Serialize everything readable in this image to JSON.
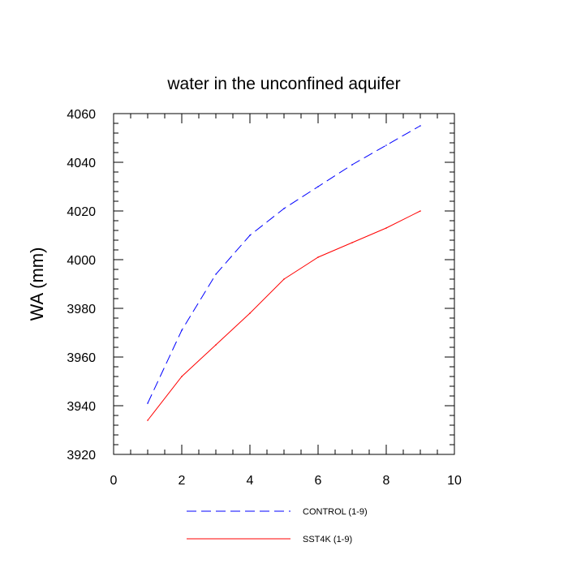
{
  "chart_data": {
    "type": "line",
    "title": "water in the unconfined aquifer",
    "xlabel": "",
    "ylabel": "WA  (mm)",
    "xlim": [
      0,
      10
    ],
    "ylim": [
      3920,
      4060
    ],
    "x_ticks": [
      0,
      2,
      4,
      6,
      8,
      10
    ],
    "y_ticks": [
      3920,
      3940,
      3960,
      3980,
      4000,
      4020,
      4040,
      4060
    ],
    "grid": false,
    "legend_position": "bottom",
    "series": [
      {
        "name": "CONTROL (1-9)",
        "color": "#0000ff",
        "dash": "dashed",
        "x": [
          1,
          2,
          3,
          4,
          5,
          6,
          7,
          8,
          9
        ],
        "y": [
          3941,
          3971,
          3994,
          4010,
          4021,
          4030,
          4039,
          4047,
          4055
        ]
      },
      {
        "name": "SST4K (1-9)",
        "color": "#ff0000",
        "dash": "solid",
        "x": [
          1,
          2,
          3,
          4,
          5,
          6,
          7,
          8,
          9
        ],
        "y": [
          3934,
          3952,
          3965,
          3978,
          3992,
          4001,
          4007,
          4013,
          4020
        ]
      }
    ]
  }
}
